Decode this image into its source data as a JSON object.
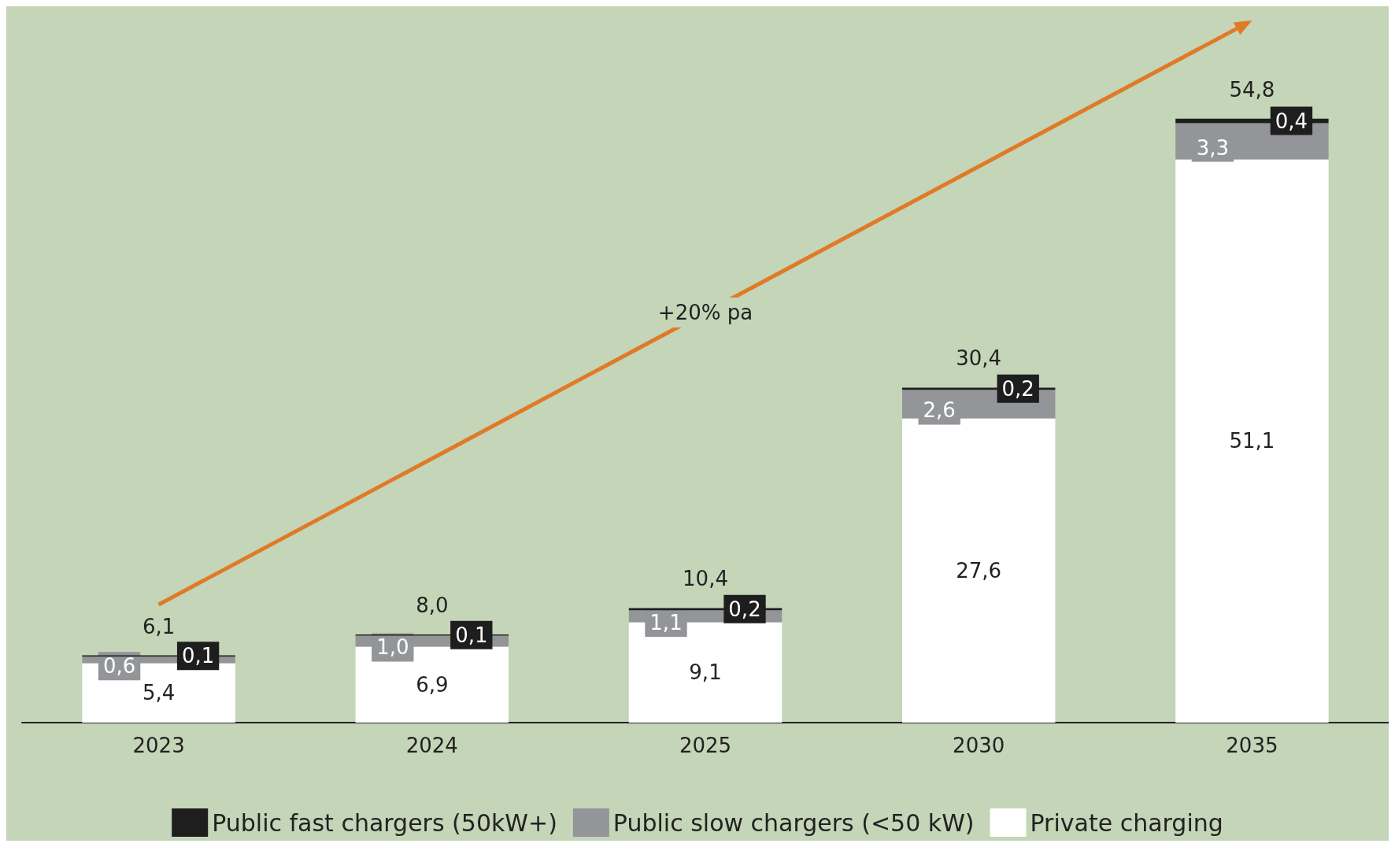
{
  "chart_data": {
    "type": "bar",
    "stacked": true,
    "categories": [
      "2023",
      "2024",
      "2025",
      "2030",
      "2035"
    ],
    "series": [
      {
        "name": "Private charging",
        "color": "#ffffff",
        "values": [
          5.4,
          6.9,
          9.1,
          27.6,
          51.1
        ],
        "value_labels": [
          "5,4",
          "6,9",
          "9,1",
          "27,6",
          "51,1"
        ]
      },
      {
        "name": "Public slow chargers (<50 kW)",
        "color": "#939598",
        "values": [
          0.6,
          1.0,
          1.1,
          2.6,
          3.3
        ],
        "value_labels": [
          "0,6",
          "1,0",
          "1,1",
          "2,6",
          "3,3"
        ]
      },
      {
        "name": "Public fast chargers (50kW+)",
        "color": "#1e1e1e",
        "values": [
          0.1,
          0.1,
          0.2,
          0.2,
          0.4
        ],
        "value_labels": [
          "0,1",
          "0,1",
          "0,2",
          "0,2",
          "0,4"
        ]
      }
    ],
    "totals": [
      "6,1",
      "8,0",
      "10,4",
      "30,4",
      "54,8"
    ],
    "annotations": [
      "+20% pa"
    ],
    "legend": "bottom"
  }
}
